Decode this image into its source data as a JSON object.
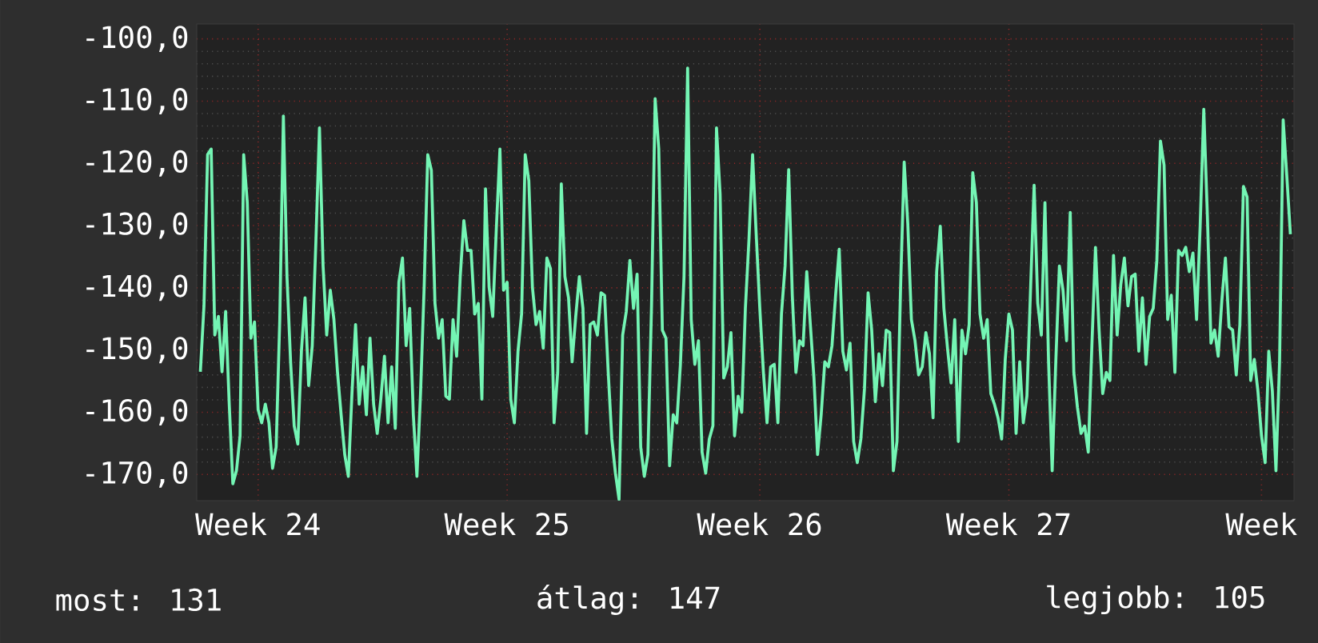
{
  "chart_data": {
    "type": "line",
    "grid": true,
    "marker": "none",
    "line_style": "solid",
    "ylim": [
      -174.2,
      -97.6
    ],
    "categories": [
      null,
      null,
      null,
      null,
      null,
      null,
      null,
      null,
      null,
      null,
      null,
      null,
      null,
      null,
      null,
      null,
      "Week 24",
      null,
      null,
      null,
      null,
      null,
      null,
      null,
      null,
      null,
      null,
      null,
      null,
      null,
      null,
      null,
      null,
      null,
      null,
      null,
      null,
      null,
      null,
      null,
      null,
      null,
      null,
      null,
      null,
      null,
      null,
      null,
      null,
      null,
      null,
      null,
      null,
      null,
      null,
      null,
      null,
      null,
      null,
      null,
      null,
      null,
      null,
      null,
      null,
      null,
      null,
      null,
      null,
      null,
      null,
      null,
      null,
      null,
      null,
      null,
      null,
      null,
      null,
      null,
      null,
      null,
      null,
      null,
      null,
      "Week 25",
      null,
      null,
      null,
      null,
      null,
      null,
      null,
      null,
      null,
      null,
      null,
      null,
      null,
      null,
      null,
      null,
      null,
      null,
      null,
      null,
      null,
      null,
      null,
      null,
      null,
      null,
      null,
      null,
      null,
      null,
      null,
      null,
      null,
      null,
      null,
      null,
      null,
      null,
      null,
      null,
      null,
      null,
      null,
      null,
      null,
      null,
      null,
      null,
      null,
      null,
      null,
      null,
      null,
      null,
      null,
      null,
      null,
      null,
      null,
      null,
      null,
      null,
      null,
      null,
      null,
      null,
      null,
      null,
      null,
      "Week 26",
      null,
      null,
      null,
      null,
      null,
      null,
      null,
      null,
      null,
      null,
      null,
      null,
      null,
      null,
      null,
      null,
      null,
      null,
      null,
      null,
      null,
      null,
      null,
      null,
      null,
      null,
      null,
      null,
      null,
      null,
      null,
      null,
      null,
      null,
      null,
      null,
      null,
      null,
      null,
      null,
      null,
      null,
      null,
      null,
      null,
      null,
      null,
      null,
      null,
      null,
      null,
      null,
      null,
      null,
      null,
      null,
      null,
      null,
      null,
      null,
      null,
      null,
      null,
      null,
      null,
      null,
      null,
      null,
      "Week 27",
      null,
      null,
      null,
      null,
      null,
      null,
      null,
      null,
      null,
      null,
      null,
      null,
      null,
      null,
      null,
      null,
      null,
      null,
      null,
      null,
      null,
      null,
      null,
      null,
      null,
      null,
      null,
      null,
      null,
      null,
      null,
      null,
      null,
      null,
      null,
      null,
      null,
      null,
      null,
      null,
      null,
      null,
      null,
      null,
      null,
      null,
      null,
      null,
      null,
      null,
      null,
      null,
      null,
      null,
      null,
      null,
      null,
      null,
      null,
      null,
      null,
      null,
      null,
      null,
      null,
      null,
      null,
      null,
      null,
      "Week",
      null,
      null,
      null,
      null,
      null,
      null,
      null,
      null
    ],
    "yticks": [
      {
        "value": -100,
        "label": "-100,0"
      },
      {
        "value": -110,
        "label": "-110,0"
      },
      {
        "value": -120,
        "label": "-120,0"
      },
      {
        "value": -130,
        "label": "-130,0"
      },
      {
        "value": -140,
        "label": "-140,0"
      },
      {
        "value": -150,
        "label": "-150,0"
      },
      {
        "value": -160,
        "label": "-160,0"
      },
      {
        "value": -170,
        "label": "-170,0"
      }
    ],
    "annotations": [
      "most: 131",
      "átlag: 147",
      "legjobb: 105"
    ],
    "series": [
      {
        "color": "#74f5b4",
        "values": [
          -153.5,
          -142.9,
          -118.6,
          -117.7,
          -147.6,
          -144.6,
          -153.5,
          -143.8,
          -158.7,
          -171.5,
          -169.4,
          -163.8,
          -118.6,
          -126.3,
          -148.1,
          -145.5,
          -159.6,
          -161.7,
          -158.7,
          -161.7,
          -169.0,
          -165.6,
          -145.1,
          -112.4,
          -138.2,
          -151.9,
          -162.2,
          -165.1,
          -150.2,
          -141.6,
          -155.7,
          -149.3,
          -132.7,
          -114.3,
          -136.5,
          -147.6,
          -140.4,
          -145.1,
          -153.6,
          -160.4,
          -166.8,
          -170.3,
          -157.0,
          -145.9,
          -158.7,
          -152.7,
          -160.4,
          -148.1,
          -158.7,
          -163.4,
          -157.9,
          -151.0,
          -161.7,
          -152.7,
          -162.6,
          -139.1,
          -135.2,
          -149.3,
          -143.3,
          -160.4,
          -170.3,
          -157.0,
          -139.9,
          -118.6,
          -121.1,
          -142.5,
          -148.1,
          -145.1,
          -157.4,
          -157.9,
          -145.1,
          -151.0,
          -138.2,
          -129.2,
          -134.0,
          -134.0,
          -144.2,
          -142.5,
          -157.9,
          -124.1,
          -139.9,
          -144.6,
          -130.5,
          -117.7,
          -140.4,
          -139.1,
          -157.9,
          -161.7,
          -150.2,
          -144.2,
          -118.6,
          -122.8,
          -139.9,
          -145.9,
          -143.8,
          -149.7,
          -135.2,
          -136.9,
          -161.7,
          -153.6,
          -123.3,
          -138.2,
          -141.6,
          -151.9,
          -144.6,
          -138.2,
          -143.3,
          -163.4,
          -145.9,
          -145.5,
          -147.6,
          -140.8,
          -141.2,
          -153.6,
          -164.3,
          -169.8,
          -174.0,
          -147.6,
          -143.8,
          -135.6,
          -143.3,
          -137.8,
          -165.6,
          -170.3,
          -166.8,
          -142.9,
          -109.6,
          -117.7,
          -146.8,
          -148.1,
          -168.6,
          -160.4,
          -161.7,
          -152.3,
          -138.2,
          -104.7,
          -145.1,
          -152.3,
          -148.5,
          -166.4,
          -169.8,
          -164.3,
          -162.2,
          -114.3,
          -125.0,
          -154.5,
          -152.7,
          -147.2,
          -163.8,
          -157.4,
          -160.0,
          -143.3,
          -132.2,
          -118.6,
          -131.4,
          -143.3,
          -153.6,
          -161.7,
          -152.7,
          -152.3,
          -161.7,
          -144.2,
          -136.5,
          -121.0,
          -141.2,
          -153.6,
          -148.5,
          -149.3,
          -137.4,
          -145.9,
          -154.5,
          -166.8,
          -160.4,
          -151.9,
          -152.7,
          -149.3,
          -141.2,
          -133.8,
          -150.2,
          -153.2,
          -148.9,
          -164.7,
          -168.1,
          -164.3,
          -156.2,
          -140.8,
          -146.8,
          -158.3,
          -150.6,
          -155.7,
          -146.8,
          -147.2,
          -169.4,
          -164.7,
          -139.9,
          -119.8,
          -129.7,
          -145.1,
          -148.5,
          -154.0,
          -152.7,
          -147.2,
          -150.6,
          -160.9,
          -137.4,
          -130.1,
          -143.3,
          -149.7,
          -155.3,
          -145.1,
          -164.7,
          -146.8,
          -150.6,
          -145.9,
          -121.5,
          -126.3,
          -144.2,
          -148.1,
          -145.1,
          -157.0,
          -158.7,
          -160.9,
          -164.3,
          -151.5,
          -144.2,
          -146.8,
          -163.4,
          -151.9,
          -161.7,
          -157.4,
          -140.4,
          -123.5,
          -142.5,
          -147.6,
          -126.3,
          -151.9,
          -169.4,
          -151.9,
          -136.5,
          -140.4,
          -148.5,
          -127.9,
          -153.6,
          -159.2,
          -163.4,
          -162.2,
          -166.4,
          -149.3,
          -133.5,
          -146.8,
          -157.0,
          -153.6,
          -154.9,
          -134.8,
          -147.6,
          -139.5,
          -135.2,
          -142.9,
          -138.2,
          -137.8,
          -150.2,
          -141.6,
          -152.3,
          -144.6,
          -143.3,
          -135.6,
          -116.4,
          -120.3,
          -145.1,
          -141.2,
          -153.6,
          -134.0,
          -134.8,
          -133.5,
          -137.4,
          -134.4,
          -145.1,
          -130.1,
          -111.3,
          -128.4,
          -148.9,
          -146.8,
          -151.0,
          -142.1,
          -135.2,
          -146.3,
          -146.8,
          -154.0,
          -145.9,
          -123.7,
          -125.4,
          -154.9,
          -151.5,
          -156.6,
          -163.8,
          -168.1,
          -150.2,
          -156.6,
          -169.4,
          -151.9,
          -113.0,
          -122.0,
          -131.4
        ]
      }
    ]
  }
}
